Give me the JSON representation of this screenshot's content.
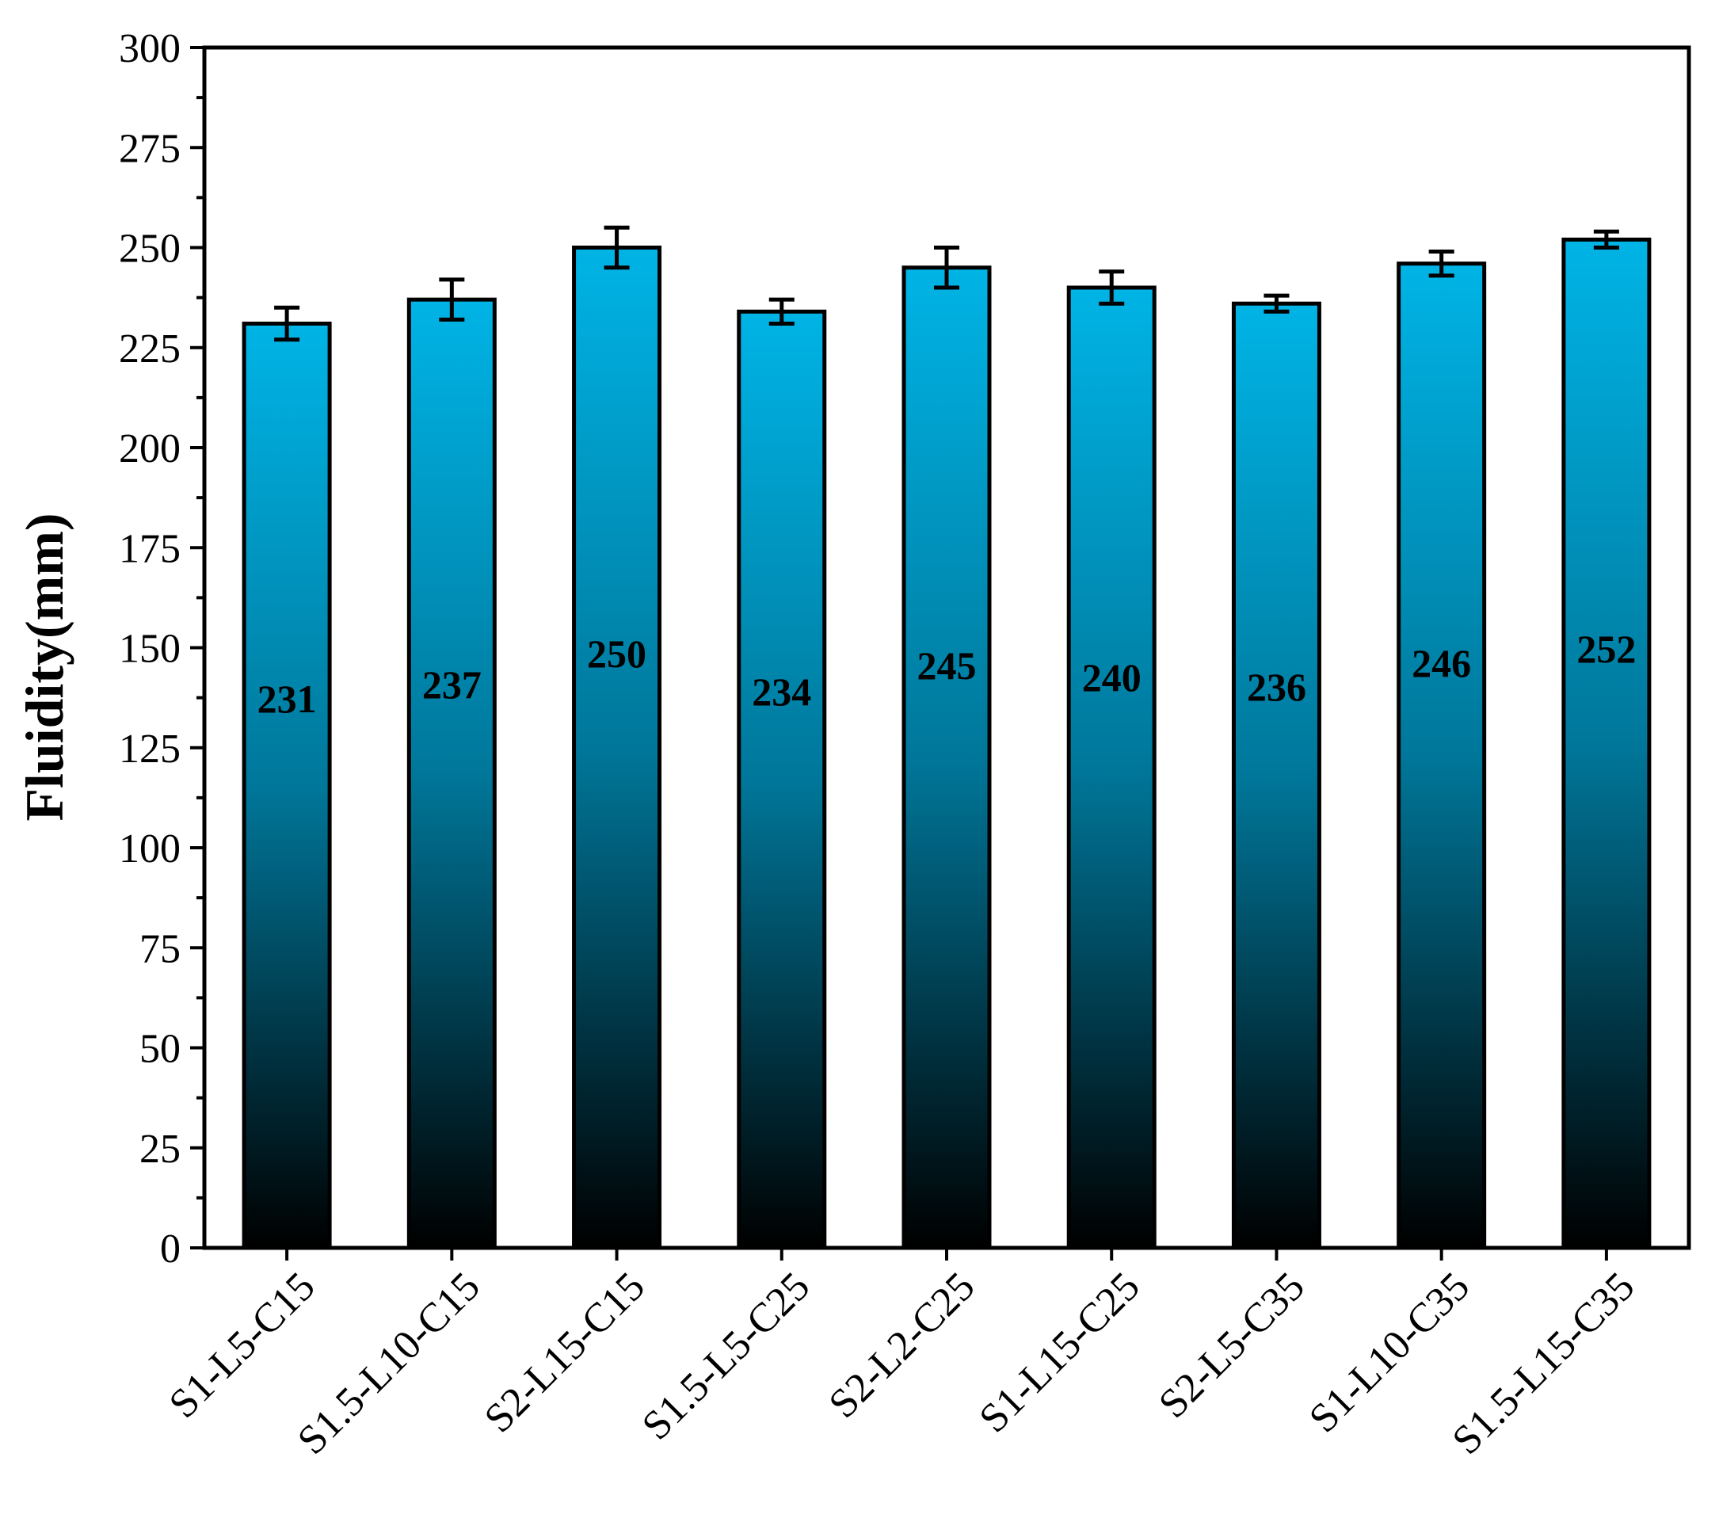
{
  "chart_data": {
    "type": "bar",
    "title": "",
    "xlabel": "",
    "ylabel": "Fluidity(mm)",
    "ylim": [
      0,
      300
    ],
    "yticks": [
      0,
      25,
      50,
      75,
      100,
      125,
      150,
      175,
      200,
      225,
      250,
      275,
      300
    ],
    "grid": false,
    "legend": "none",
    "categories": [
      "S1-L5-C15",
      "S1.5-L10-C15",
      "S2-L15-C15",
      "S1.5-L5-C25",
      "S2-L2-C25",
      "S1-L15-C25",
      "S2-L5-C35",
      "S1-L10-C35",
      "S1.5-L15-C35"
    ],
    "values": [
      231,
      237,
      250,
      234,
      245,
      240,
      236,
      246,
      252
    ],
    "error": [
      4,
      5,
      5,
      3,
      5,
      4,
      2,
      3,
      2
    ],
    "data_labels": [
      "231",
      "237",
      "250",
      "234",
      "245",
      "240",
      "236",
      "246",
      "252"
    ],
    "colors": {
      "bar_top": "#00b4e6",
      "bar_bottom": "#000000",
      "edge": "#000000"
    }
  }
}
